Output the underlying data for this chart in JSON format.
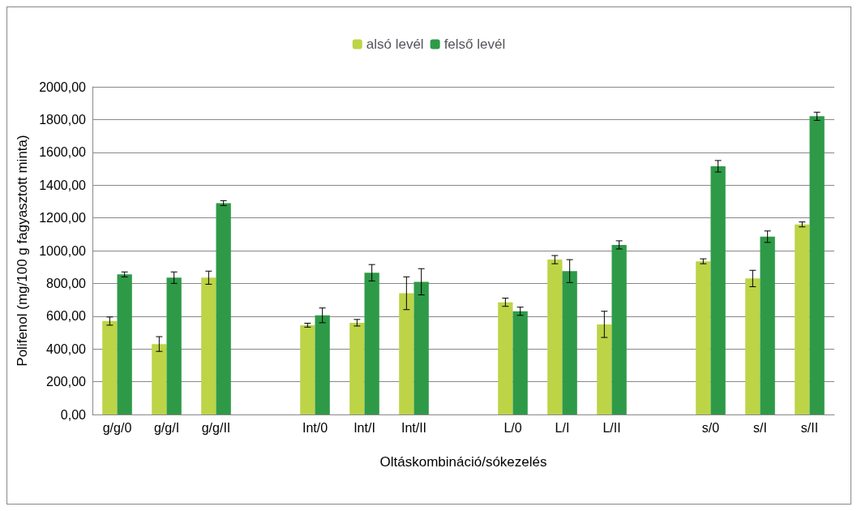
{
  "chart_data": {
    "type": "bar",
    "xlabel": "Oltáskombináció/sókezelés",
    "ylabel": "Polifenol (mg/100 g fagyasztott minta)",
    "categories": [
      "g/g/0",
      "g/g/I",
      "g/g/II",
      null,
      "Int/0",
      "Int/I",
      "Int/II",
      null,
      "L/0",
      "L/I",
      "L/II",
      null,
      "s/0",
      "s/I",
      "s/II"
    ],
    "series": [
      {
        "name": "alsó levél",
        "color": "#bdd447",
        "values": [
          570,
          430,
          835,
          null,
          545,
          560,
          740,
          null,
          685,
          945,
          550,
          null,
          935,
          830,
          1160
        ],
        "errors": [
          25,
          45,
          40,
          null,
          12,
          20,
          100,
          null,
          25,
          25,
          80,
          null,
          15,
          50,
          15
        ]
      },
      {
        "name": "felső levél",
        "color": "#2e9a47",
        "values": [
          855,
          835,
          1290,
          null,
          605,
          865,
          810,
          null,
          630,
          875,
          1035,
          null,
          1515,
          1085,
          1820
        ],
        "errors": [
          15,
          35,
          15,
          null,
          45,
          50,
          80,
          null,
          25,
          70,
          25,
          null,
          35,
          35,
          25
        ]
      }
    ],
    "ylim": [
      0,
      2000
    ],
    "yticks": [
      {
        "value": 0,
        "label": "0,00"
      },
      {
        "value": 200,
        "label": "200,00"
      },
      {
        "value": 400,
        "label": "400,00"
      },
      {
        "value": 600,
        "label": "600,00"
      },
      {
        "value": 800,
        "label": "800,00"
      },
      {
        "value": 1000,
        "label": "1000,00"
      },
      {
        "value": 1200,
        "label": "1200,00"
      },
      {
        "value": 1400,
        "label": "1400,00"
      },
      {
        "value": 1600,
        "label": "1600,00"
      },
      {
        "value": 1800,
        "label": "1800,00"
      },
      {
        "value": 2000,
        "label": "2000,00"
      }
    ],
    "grid": "y",
    "legend": "top"
  }
}
